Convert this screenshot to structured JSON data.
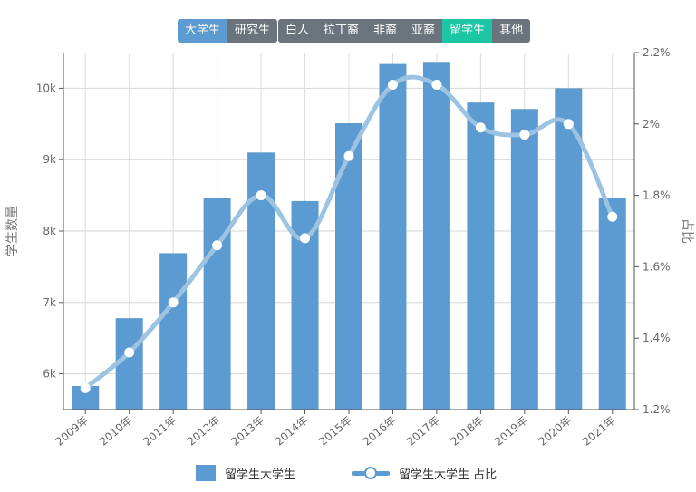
{
  "filters": {
    "level_buttons": [
      {
        "label": "大学生",
        "active": true
      },
      {
        "label": "研究生",
        "active": false
      }
    ],
    "race_buttons": [
      {
        "label": "白人",
        "active": false
      },
      {
        "label": "拉丁裔",
        "active": false
      },
      {
        "label": "非裔",
        "active": false
      },
      {
        "label": "亚裔",
        "active": false
      },
      {
        "label": "留学生",
        "active": true
      },
      {
        "label": "其他",
        "active": false
      }
    ]
  },
  "colors": {
    "bar": "#5b9bd1",
    "line": "#9cc3e2",
    "button_active_blue": "#5b9bd1",
    "button_active_teal": "#1cc5a3",
    "button_inactive": "#6b747c"
  },
  "chart_data": {
    "type": "bar",
    "categories": [
      "2009年",
      "2010年",
      "2011年",
      "2012年",
      "2013年",
      "2014年",
      "2015年",
      "2016年",
      "2017年",
      "2018年",
      "2019年",
      "2020年",
      "2021年"
    ],
    "series": [
      {
        "name": "留学生大学生",
        "type": "bar",
        "axis": "left",
        "values": [
          5830,
          6780,
          7690,
          8460,
          9100,
          8420,
          9510,
          10340,
          10370,
          9800,
          9710,
          10000,
          8460
        ]
      },
      {
        "name": "留学生大学生 占比",
        "type": "line",
        "axis": "right",
        "unit": "%",
        "values": [
          1.26,
          1.36,
          1.5,
          1.66,
          1.8,
          1.68,
          1.91,
          2.11,
          2.11,
          1.99,
          1.97,
          2.0,
          1.74
        ]
      }
    ],
    "ylabel": "学生数量",
    "y2label": "占比",
    "ylim": [
      5500,
      10500
    ],
    "y_ticks": [
      6000,
      7000,
      8000,
      9000,
      10000
    ],
    "y_tick_labels": [
      "6k",
      "7k",
      "8k",
      "9k",
      "10k"
    ],
    "y2lim": [
      1.2,
      2.2
    ],
    "y2_ticks": [
      1.2,
      1.4,
      1.6,
      1.8,
      2.0,
      2.2
    ],
    "y2_tick_labels": [
      "1.2%",
      "1.4%",
      "1.6%",
      "1.8%",
      "2%",
      "2.2%"
    ],
    "grid": true,
    "legend_position": "bottom-center"
  },
  "legend": {
    "bar_label": "留学生大学生",
    "line_label": "留学生大学生 占比"
  }
}
